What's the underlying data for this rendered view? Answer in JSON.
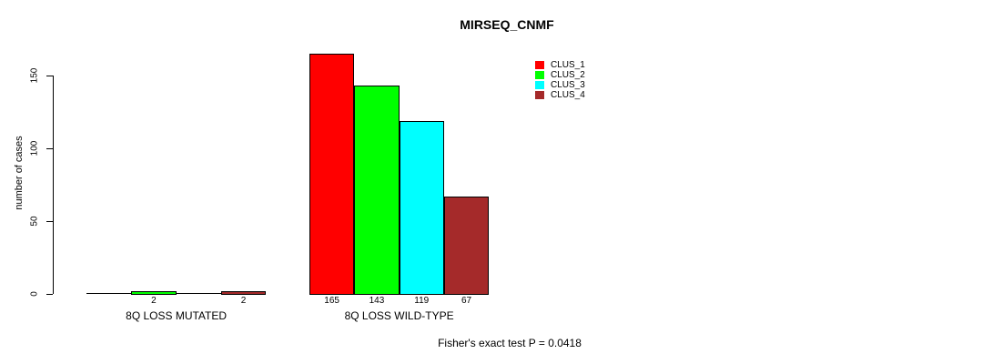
{
  "title": "MIRSEQ_CNMF",
  "footer": "Fisher's exact test P = 0.0418",
  "y_axis": {
    "label": "number of cases",
    "ticks": [
      0,
      50,
      100,
      150
    ]
  },
  "legend": {
    "position": "top-right",
    "entries": [
      {
        "label": "CLUS_1",
        "color": "#ff0000"
      },
      {
        "label": "CLUS_2",
        "color": "#00ff00"
      },
      {
        "label": "CLUS_3",
        "color": "#00ffff"
      },
      {
        "label": "CLUS_4",
        "color": "#a52a2a"
      }
    ]
  },
  "chart_data": {
    "type": "bar",
    "title": "MIRSEQ_CNMF",
    "ylabel": "number of cases",
    "xlabel": "",
    "ylim": [
      0,
      168
    ],
    "yticks": [
      0,
      50,
      100,
      150
    ],
    "grid": false,
    "legend_position": "top-right",
    "series": [
      "CLUS_1",
      "CLUS_2",
      "CLUS_3",
      "CLUS_4"
    ],
    "colors": [
      "#ff0000",
      "#00ff00",
      "#00ffff",
      "#a52a2a"
    ],
    "categories": [
      "8Q LOSS MUTATED",
      "8Q LOSS WILD-TYPE"
    ],
    "groups": [
      {
        "label": "8Q LOSS MUTATED",
        "values": [
          0,
          2,
          0,
          2
        ]
      },
      {
        "label": "8Q LOSS WILD-TYPE",
        "values": [
          165,
          143,
          119,
          67
        ]
      }
    ],
    "annotation": "Fisher's exact test P = 0.0418"
  }
}
